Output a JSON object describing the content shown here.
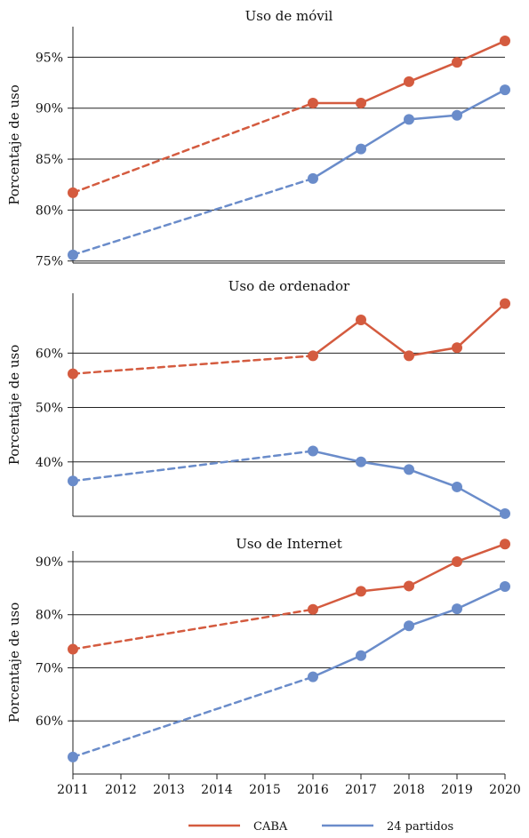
{
  "chart_data": [
    {
      "type": "line",
      "title": "Uso de móvil",
      "ylabel": "Porcentaje de uso",
      "xlabel": "",
      "x": [
        2011,
        2016,
        2017,
        2018,
        2019,
        2020
      ],
      "xlim": [
        2011,
        2020
      ],
      "ylim": [
        74.8,
        98
      ],
      "yticks": [
        75,
        80,
        85,
        90,
        95
      ],
      "ytick_labels": [
        "75%",
        "80%",
        "85%",
        "90%",
        "95%"
      ],
      "grid": true,
      "series": [
        {
          "name": "CABA",
          "values": [
            81.7,
            90.5,
            90.5,
            92.6,
            94.5,
            96.6
          ],
          "color": "#d45b3f",
          "dashed_segments": [
            0
          ]
        },
        {
          "name": "24 partidos",
          "values": [
            75.6,
            83.1,
            86.0,
            88.9,
            89.3,
            91.8
          ],
          "color": "#6a8cca",
          "dashed_segments": [
            0
          ]
        }
      ]
    },
    {
      "type": "line",
      "title": "Uso de ordenador",
      "ylabel": "Porcentaje de uso",
      "xlabel": "",
      "x": [
        2011,
        2016,
        2017,
        2018,
        2019,
        2020
      ],
      "xlim": [
        2011,
        2020
      ],
      "ylim": [
        30,
        71
      ],
      "yticks": [
        40,
        50,
        60
      ],
      "ytick_labels": [
        "40%",
        "50%",
        "60%"
      ],
      "grid": true,
      "series": [
        {
          "name": "CABA",
          "values": [
            56.2,
            59.5,
            66.1,
            59.5,
            61.0,
            69.1
          ],
          "color": "#d45b3f",
          "dashed_segments": [
            0
          ]
        },
        {
          "name": "24 partidos",
          "values": [
            36.5,
            42.0,
            40.0,
            38.6,
            35.4,
            30.5
          ],
          "color": "#6a8cca",
          "dashed_segments": [
            0
          ]
        }
      ]
    },
    {
      "type": "line",
      "title": "Uso de Internet",
      "ylabel": "Porcentaje de uso",
      "xlabel": "",
      "x": [
        2011,
        2016,
        2017,
        2018,
        2019,
        2020
      ],
      "xlim": [
        2011,
        2020
      ],
      "ylim": [
        50,
        92
      ],
      "yticks": [
        60,
        70,
        80,
        90
      ],
      "ytick_labels": [
        "60%",
        "70%",
        "80%",
        "90%"
      ],
      "grid": true,
      "series": [
        {
          "name": "CABA",
          "values": [
            73.5,
            81.0,
            84.4,
            85.4,
            90.0,
            93.3
          ],
          "color": "#d45b3f",
          "dashed_segments": [
            0
          ]
        },
        {
          "name": "24 partidos",
          "values": [
            53.2,
            68.3,
            72.3,
            77.9,
            81.1,
            85.3
          ],
          "color": "#6a8cca",
          "dashed_segments": [
            0
          ]
        }
      ]
    }
  ],
  "x_ticks": [
    2011,
    2012,
    2013,
    2014,
    2015,
    2016,
    2017,
    2018,
    2019,
    2020
  ],
  "x_tick_labels": [
    "2011",
    "2012",
    "2013",
    "2014",
    "2015",
    "2016",
    "2017",
    "2018",
    "2019",
    "2020"
  ],
  "legend": {
    "placement": "bottom-center",
    "items": [
      {
        "label": "CABA",
        "color": "#d45b3f"
      },
      {
        "label": "24 partidos",
        "color": "#6a8cca"
      }
    ]
  }
}
